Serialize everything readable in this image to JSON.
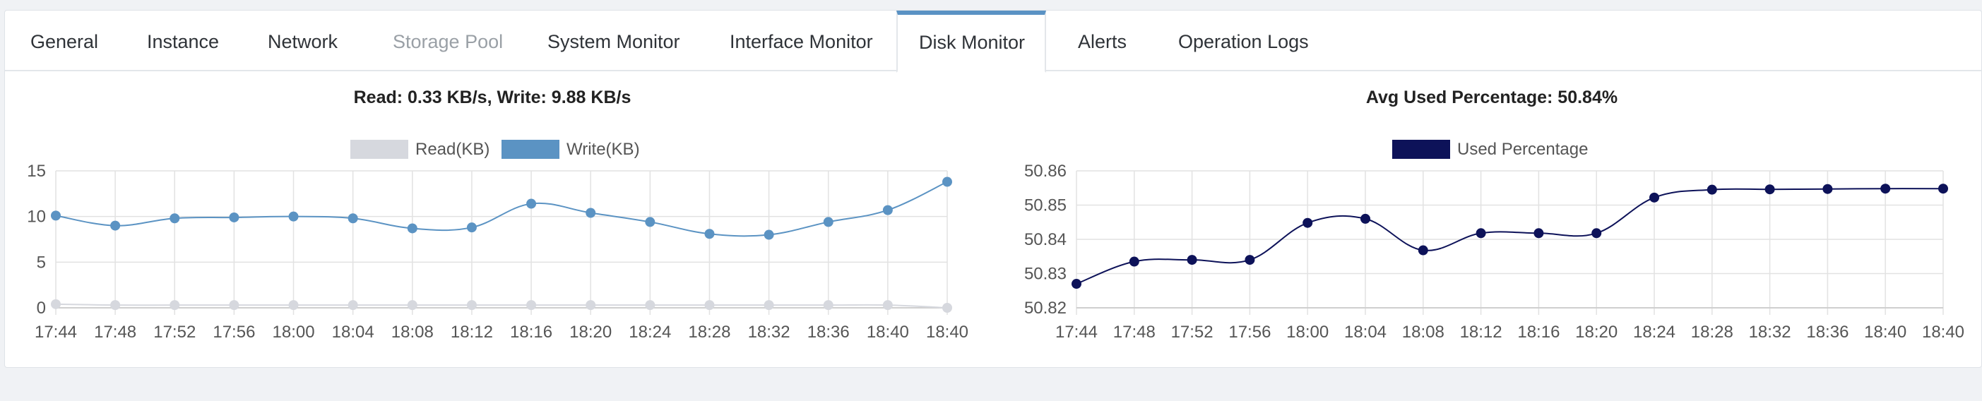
{
  "tabs": [
    {
      "label": "General",
      "state": "normal"
    },
    {
      "label": "Instance",
      "state": "normal"
    },
    {
      "label": "Network",
      "state": "normal"
    },
    {
      "label": "Storage Pool",
      "state": "disabled"
    },
    {
      "label": "System Monitor",
      "state": "normal"
    },
    {
      "label": "Interface Monitor",
      "state": "normal"
    },
    {
      "label": "Disk Monitor",
      "state": "active"
    },
    {
      "label": "Alerts",
      "state": "normal"
    },
    {
      "label": "Operation Logs",
      "state": "normal"
    }
  ],
  "colors": {
    "accent": "#5a92c4",
    "read_series": "#d6d8de",
    "write_series": "#5b93c3",
    "used_series": "#0d1259",
    "grid": "#e2e2e2"
  },
  "chart_data": [
    {
      "type": "line",
      "title": "Read: 0.33 KB/s, Write: 9.88 KB/s",
      "legend_position": "top-center",
      "categories": [
        "17:44",
        "17:48",
        "17:52",
        "17:56",
        "18:00",
        "18:04",
        "18:08",
        "18:12",
        "18:16",
        "18:20",
        "18:24",
        "18:28",
        "18:32",
        "18:36",
        "18:40",
        "18:40"
      ],
      "series": [
        {
          "name": "Read(KB)",
          "values": [
            0.4,
            0.3,
            0.3,
            0.3,
            0.3,
            0.3,
            0.3,
            0.3,
            0.3,
            0.3,
            0.3,
            0.3,
            0.3,
            0.3,
            0.3,
            0.0
          ]
        },
        {
          "name": "Write(KB)",
          "values": [
            10.1,
            9.0,
            9.8,
            9.9,
            10.0,
            9.8,
            8.7,
            8.8,
            11.4,
            10.4,
            9.4,
            8.1,
            8.0,
            9.4,
            10.7,
            13.8
          ]
        }
      ],
      "yticks": [
        0,
        5,
        10,
        15
      ],
      "ylim": [
        0,
        15
      ],
      "xlabel": "",
      "ylabel": "",
      "grid": true
    },
    {
      "type": "line",
      "title": "Avg Used Percentage: 50.84%",
      "legend_position": "top-center",
      "categories": [
        "17:44",
        "17:48",
        "17:52",
        "17:56",
        "18:00",
        "18:04",
        "18:08",
        "18:12",
        "18:16",
        "18:20",
        "18:24",
        "18:28",
        "18:32",
        "18:36",
        "18:40",
        "18:40"
      ],
      "series": [
        {
          "name": "Used Percentage",
          "values": [
            50.827,
            50.8335,
            50.834,
            50.834,
            50.8448,
            50.846,
            50.8368,
            50.8418,
            50.8418,
            50.8418,
            50.8522,
            50.8545,
            50.8546,
            50.8547,
            50.8548,
            50.8548
          ]
        }
      ],
      "yticks": [
        50.82,
        50.83,
        50.84,
        50.85,
        50.86
      ],
      "ylim": [
        50.82,
        50.86
      ],
      "xlabel": "",
      "ylabel": "",
      "grid": true
    }
  ]
}
